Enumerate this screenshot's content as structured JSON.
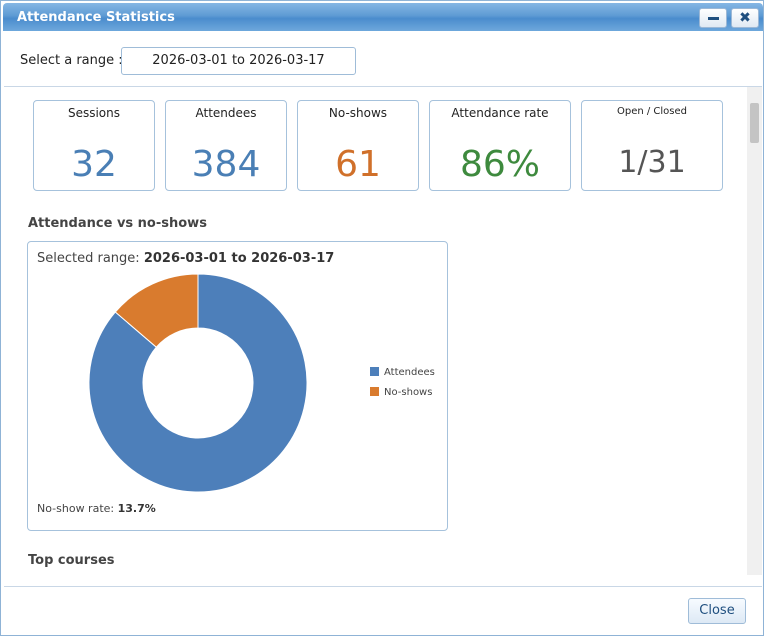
{
  "window": {
    "title": "Attendance Statistics"
  },
  "range": {
    "label": "Select a range :",
    "value": "2026-03-01 to 2026-03-17"
  },
  "cards": [
    {
      "label": "Sessions",
      "value": "32",
      "color": "#4a7fb5"
    },
    {
      "label": "Attendees",
      "value": "384",
      "color": "#4a7fb5"
    },
    {
      "label": "No-shows",
      "value": "61",
      "color": "#d0702a"
    },
    {
      "label": "Attendance rate",
      "value": "86%",
      "color": "#3e8a3e"
    },
    {
      "label": "Open / Closed",
      "value": "1/31",
      "color": "#555555"
    }
  ],
  "chart_section": {
    "title": "Attendance vs no-shows"
  },
  "chart_data": {
    "type": "pie",
    "selected_range_label": "Selected range:",
    "selected_range_value": "2026-03-01 to 2026-03-17",
    "series": [
      {
        "name": "Attendees",
        "value": 384,
        "color": "#4d7fba"
      },
      {
        "name": "No-shows",
        "value": 61,
        "color": "#d97b2e"
      }
    ],
    "legend_position": "right",
    "donut": true,
    "rate_label": "No-show rate:",
    "rate_value": "13.7%"
  },
  "top_courses": {
    "title": "Top courses"
  },
  "footer": {
    "close_label": "Close"
  }
}
